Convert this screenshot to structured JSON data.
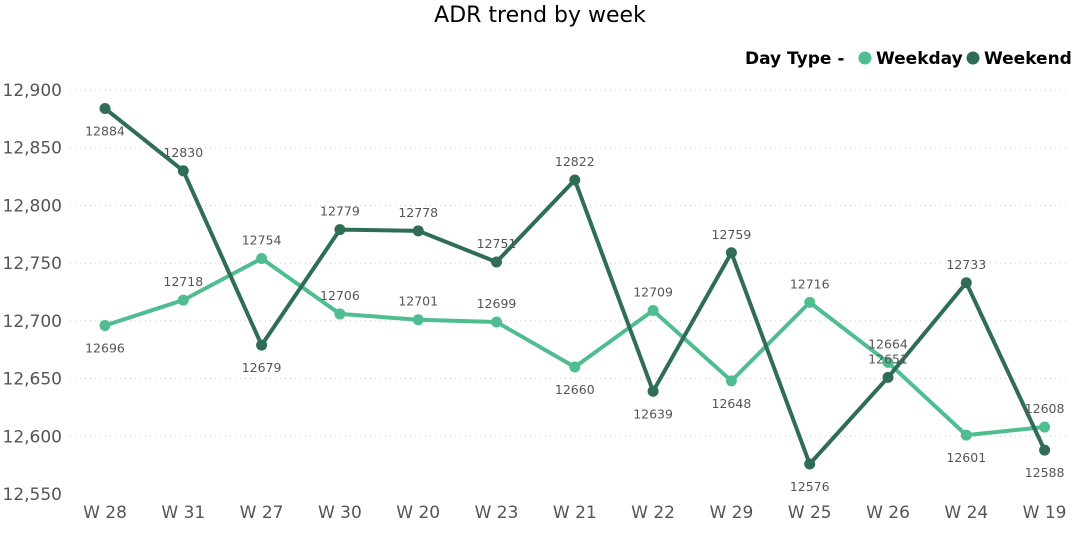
{
  "chart_data": {
    "type": "line",
    "title": "ADR trend by week",
    "legend_title": "Day Type -",
    "legend_position": "top-right",
    "grid": true,
    "categories": [
      "W 28",
      "W 31",
      "W 27",
      "W 30",
      "W 20",
      "W 23",
      "W 21",
      "W 22",
      "W 29",
      "W 25",
      "W 26",
      "W 24",
      "W 19"
    ],
    "ylim": [
      12550,
      12900
    ],
    "yticks": [
      12550,
      12600,
      12650,
      12700,
      12750,
      12800,
      12850,
      12900
    ],
    "ytick_labels": [
      "12,550",
      "12,600",
      "12,650",
      "12,700",
      "12,750",
      "12,800",
      "12,850",
      "12,900"
    ],
    "series": [
      {
        "name": "Weekday",
        "color": "#4fbd8f",
        "values": [
          12696,
          12718,
          12754,
          12706,
          12701,
          12699,
          12660,
          12709,
          12648,
          12716,
          12664,
          12601,
          12608
        ],
        "label_positions": [
          "below",
          "above",
          "above",
          "above",
          "above",
          "above",
          "below",
          "above",
          "below",
          "above",
          "above",
          "below",
          "above"
        ]
      },
      {
        "name": "Weekend",
        "color": "#2f6e55",
        "values": [
          12884,
          12830,
          12679,
          12779,
          12778,
          12751,
          12822,
          12639,
          12759,
          12576,
          12651,
          12733,
          12588
        ],
        "label_positions": [
          "below",
          "above",
          "below",
          "above",
          "above",
          "above",
          "above",
          "below",
          "above",
          "below",
          "above",
          "above",
          "below"
        ]
      }
    ]
  }
}
